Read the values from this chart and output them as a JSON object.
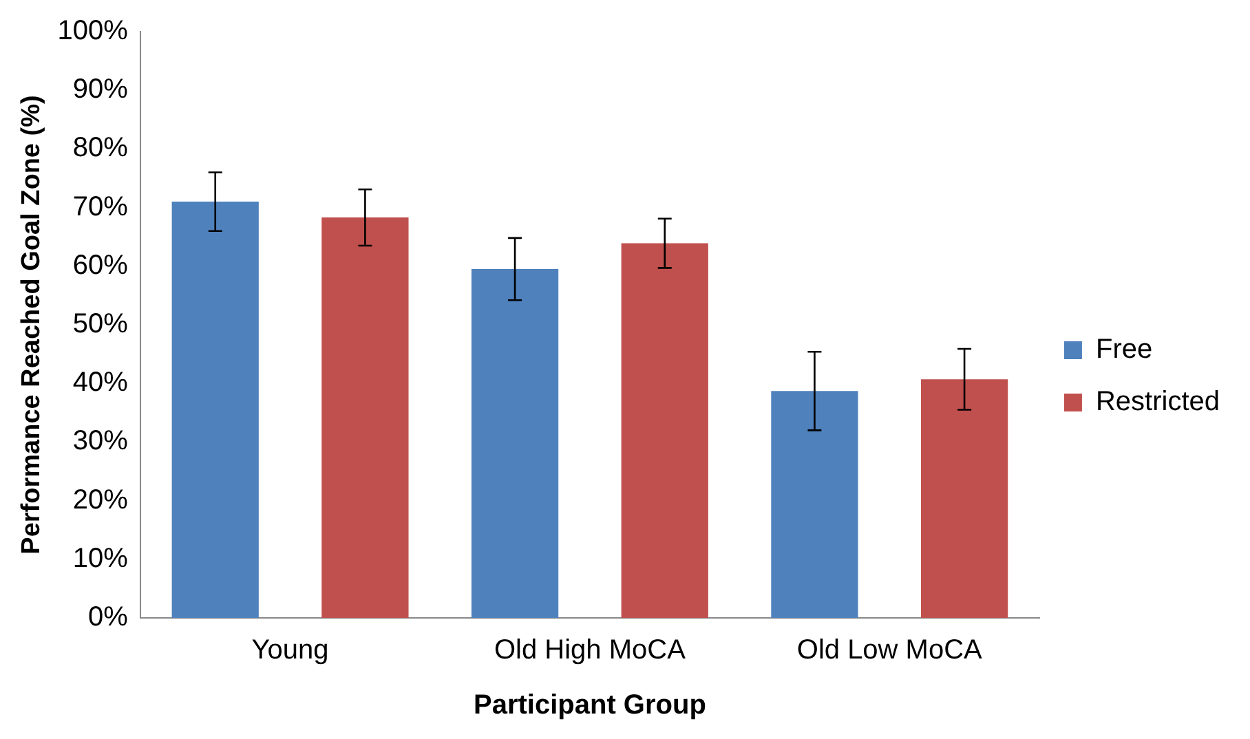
{
  "chart_data": {
    "type": "bar",
    "xlabel": "Participant Group",
    "ylabel": "Performance Reached Goal Zone (%)",
    "categories": [
      "Young",
      "Old High MoCA",
      "Old Low MoCA"
    ],
    "series": [
      {
        "name": "Free",
        "color": "#4f81bd",
        "values": [
          71,
          59.5,
          38.7
        ],
        "errors": [
          5,
          5.3,
          6.7
        ]
      },
      {
        "name": "Restricted",
        "color": "#c0504d",
        "values": [
          68.3,
          63.9,
          40.7
        ],
        "errors": [
          4.8,
          4.2,
          5.2
        ]
      }
    ],
    "ylim": [
      0,
      100
    ],
    "yticks": [
      {
        "value": 0,
        "label": "0%"
      },
      {
        "value": 10,
        "label": "10%"
      },
      {
        "value": 20,
        "label": "20%"
      },
      {
        "value": 30,
        "label": "30%"
      },
      {
        "value": 40,
        "label": "40%"
      },
      {
        "value": 50,
        "label": "50%"
      },
      {
        "value": 60,
        "label": "60%"
      },
      {
        "value": 70,
        "label": "70%"
      },
      {
        "value": 80,
        "label": "80%"
      },
      {
        "value": 90,
        "label": "90%"
      },
      {
        "value": 100,
        "label": "100%"
      }
    ],
    "grid": false,
    "legend": "right"
  }
}
